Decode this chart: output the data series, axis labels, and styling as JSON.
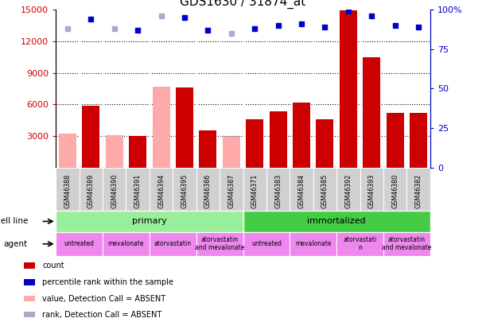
{
  "title": "GDS1630 / 31874_at",
  "samples": [
    "GSM46388",
    "GSM46389",
    "GSM46390",
    "GSM46391",
    "GSM46394",
    "GSM46395",
    "GSM46386",
    "GSM46387",
    "GSM46371",
    "GSM46383",
    "GSM46384",
    "GSM46385",
    "GSM46392",
    "GSM46393",
    "GSM46380",
    "GSM46382"
  ],
  "count_values": [
    3200,
    5900,
    3100,
    3000,
    7700,
    7600,
    3500,
    2900,
    4600,
    5300,
    6200,
    4600,
    14900,
    10500,
    5200,
    5200
  ],
  "absent_count": [
    true,
    false,
    true,
    false,
    true,
    false,
    false,
    true,
    false,
    false,
    false,
    false,
    false,
    false,
    false,
    false
  ],
  "percentile_values": [
    88,
    94,
    88,
    87,
    96,
    95,
    87,
    85,
    88,
    90,
    91,
    89,
    99,
    96,
    90,
    89
  ],
  "absent_rank": [
    true,
    false,
    true,
    false,
    true,
    false,
    false,
    true,
    false,
    false,
    false,
    false,
    false,
    false,
    false,
    false
  ],
  "ylim_left": [
    0,
    15000
  ],
  "ylim_right": [
    0,
    100
  ],
  "yticks_left": [
    3000,
    6000,
    9000,
    12000,
    15000
  ],
  "yticks_right": [
    0,
    25,
    50,
    75,
    100
  ],
  "ytick_labels_right": [
    "0",
    "25",
    "50",
    "75",
    "100%"
  ],
  "bar_color_present": "#cc0000",
  "bar_color_absent": "#ffaaaa",
  "dot_color_present": "#0000cc",
  "dot_color_absent": "#aaaacc",
  "cell_line_primary_color": "#99ee99",
  "cell_line_immortalized_color": "#44cc44",
  "agent_color": "#ee88ee",
  "sample_box_color": "#d0d0d0",
  "agent_groups": [
    {
      "label": "untreated",
      "start": 0,
      "end": 2
    },
    {
      "label": "mevalonate",
      "start": 2,
      "end": 4
    },
    {
      "label": "atorvastatin",
      "start": 4,
      "end": 6
    },
    {
      "label": "atorvastatin\nand mevalonate",
      "start": 6,
      "end": 8
    },
    {
      "label": "untreated",
      "start": 8,
      "end": 10
    },
    {
      "label": "mevalonate",
      "start": 10,
      "end": 12
    },
    {
      "label": "atorvastati\nn",
      "start": 12,
      "end": 14
    },
    {
      "label": "atorvastatin\nand mevalonate",
      "start": 14,
      "end": 16
    }
  ],
  "legend_items": [
    {
      "color": "#cc0000",
      "label": "count"
    },
    {
      "color": "#0000cc",
      "label": "percentile rank within the sample"
    },
    {
      "color": "#ffaaaa",
      "label": "value, Detection Call = ABSENT"
    },
    {
      "color": "#aaaacc",
      "label": "rank, Detection Call = ABSENT"
    }
  ],
  "bar_color_present_hex": "#cc0000",
  "ylabel_left_color": "#cc0000",
  "ylabel_right_color": "#0000cc"
}
